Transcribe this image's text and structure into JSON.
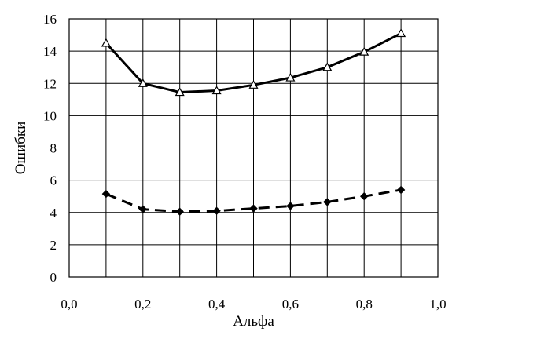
{
  "chart_data": {
    "type": "line",
    "title": "",
    "xlabel": "Альфа",
    "ylabel": "Ошибки",
    "xlim": [
      0,
      1
    ],
    "ylim": [
      0,
      16
    ],
    "x_ticks": [
      "0,0",
      "0,2",
      "0,4",
      "0,6",
      "0,8",
      "1,0"
    ],
    "x_tick_values": [
      0,
      0.2,
      0.4,
      0.6,
      0.8,
      1.0
    ],
    "y_ticks": [
      "0",
      "2",
      "4",
      "6",
      "8",
      "10",
      "12",
      "14",
      "16"
    ],
    "y_tick_values": [
      0,
      2,
      4,
      6,
      8,
      10,
      12,
      14,
      16
    ],
    "grid": true,
    "x": [
      0.1,
      0.2,
      0.3,
      0.4,
      0.5,
      0.6,
      0.7,
      0.8,
      0.9
    ],
    "series": [
      {
        "values": [
          14.5,
          12.0,
          11.45,
          11.55,
          11.9,
          12.35,
          13.0,
          13.95,
          15.1
        ],
        "line_style": "solid",
        "marker": "open-triangle",
        "color": "#000000"
      },
      {
        "values": [
          5.15,
          4.2,
          4.05,
          4.1,
          4.25,
          4.4,
          4.65,
          5.0,
          5.4
        ],
        "line_style": "dashed",
        "marker": "filled-diamond",
        "color": "#000000"
      }
    ]
  }
}
